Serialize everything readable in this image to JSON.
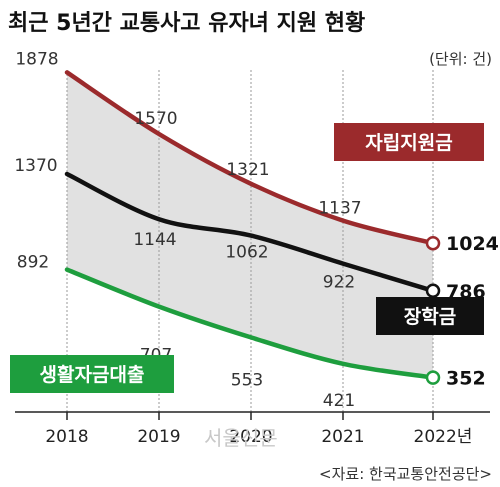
{
  "title": "최근 5년간 교통사고 유자녀 지원 현황",
  "unit": "(단위: 건)",
  "source": "<자료: 한국교통안전공단>",
  "watermark": "서울신문",
  "colors": {
    "red": "#9b2a2c",
    "black": "#111111",
    "green": "#1e9e3e",
    "area": "#dcdcdc",
    "grid": "#9a9a9a"
  },
  "chart_data": {
    "type": "line",
    "x": [
      "2018",
      "2019",
      "2020",
      "2021",
      "2022년"
    ],
    "ylim": [
      0,
      2000
    ],
    "series": [
      {
        "name": "자립지원금",
        "color": "#9b2a2c",
        "values": [
          1878,
          1570,
          1321,
          1137,
          1024
        ]
      },
      {
        "name": "장학금",
        "color": "#111111",
        "values": [
          1370,
          1144,
          1062,
          922,
          786
        ]
      },
      {
        "name": "생활자금대출",
        "color": "#1e9e3e",
        "values": [
          892,
          707,
          553,
          421,
          352
        ]
      }
    ]
  }
}
